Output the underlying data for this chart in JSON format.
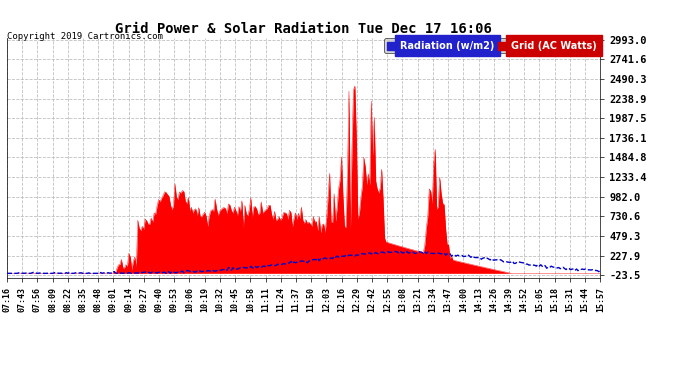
{
  "title": "Grid Power & Solar Radiation Tue Dec 17 16:06",
  "copyright": "Copyright 2019 Cartronics.com",
  "legend_radiation": "Radiation (w/m2)",
  "legend_grid": "Grid (AC Watts)",
  "ymin": -23.5,
  "ymax": 2993.0,
  "yticks": [
    2993.0,
    2741.6,
    2490.3,
    2238.9,
    1987.5,
    1736.1,
    1484.8,
    1233.4,
    982.0,
    730.6,
    479.3,
    227.9,
    -23.5
  ],
  "background_color": "#ffffff",
  "grid_color": "#b0b0b0",
  "radiation_color": "#0000cc",
  "grid_fill_color": "#ff0000",
  "x_labels": [
    "07:16",
    "07:43",
    "07:56",
    "08:09",
    "08:22",
    "08:35",
    "08:48",
    "09:01",
    "09:14",
    "09:27",
    "09:40",
    "09:53",
    "10:06",
    "10:19",
    "10:32",
    "10:45",
    "10:58",
    "11:11",
    "11:24",
    "11:37",
    "11:50",
    "12:03",
    "12:16",
    "12:29",
    "12:42",
    "12:55",
    "13:08",
    "13:21",
    "13:34",
    "13:47",
    "14:00",
    "14:13",
    "14:26",
    "14:39",
    "14:52",
    "15:05",
    "15:18",
    "15:31",
    "15:44",
    "15:57"
  ]
}
